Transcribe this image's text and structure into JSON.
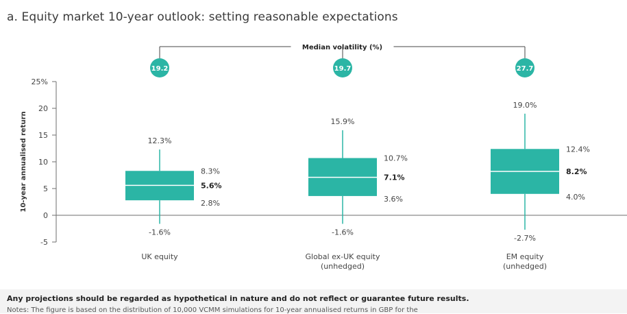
{
  "title": "a. Equity market 10-year outlook: setting reasonable expectations",
  "disclaimer": "Any projections should be regarded as hypothetical in nature and do not reflect or guarantee future results.",
  "note": "Notes: The figure is based on the distribution of 10,000 VCMM simulations for 10-year annualised returns in GBP for the",
  "colors": {
    "box": "#2bb5a5",
    "median_line": "#ffffff",
    "axis": "#6e6e6e",
    "badge": "#2bb5a5"
  },
  "chart_data": {
    "type": "box",
    "title": "",
    "ylabel": "10-year annualised return",
    "ylim": [
      -5,
      25
    ],
    "yticks": [
      {
        "value": 25,
        "label": "25%"
      },
      {
        "value": 20,
        "label": "20"
      },
      {
        "value": 15,
        "label": "15"
      },
      {
        "value": 10,
        "label": "10"
      },
      {
        "value": 5,
        "label": "5"
      },
      {
        "value": 0,
        "label": "0"
      },
      {
        "value": -5,
        "label": "-5"
      }
    ],
    "volatility_header": "Median volatility (%)",
    "categories": [
      {
        "label_lines": [
          "UK equity"
        ],
        "volatility": "19.2",
        "max": 12.3,
        "q3": 8.3,
        "median": 5.6,
        "q1": 2.8,
        "min": -1.6,
        "max_label": "12.3%",
        "q3_label": "8.3%",
        "median_label": "5.6%",
        "q1_label": "2.8%",
        "min_label": "-1.6%"
      },
      {
        "label_lines": [
          "Global ex-UK equity",
          "(unhedged)"
        ],
        "volatility": "19.7",
        "max": 15.9,
        "q3": 10.7,
        "median": 7.1,
        "q1": 3.6,
        "min": -1.6,
        "max_label": "15.9%",
        "q3_label": "10.7%",
        "median_label": "7.1%",
        "q1_label": "3.6%",
        "min_label": "-1.6%"
      },
      {
        "label_lines": [
          "EM equity",
          "(unhedged)"
        ],
        "volatility": "27.7",
        "max": 19.0,
        "q3": 12.4,
        "median": 8.2,
        "q1": 4.0,
        "min": -2.7,
        "max_label": "19.0%",
        "q3_label": "12.4%",
        "median_label": "8.2%",
        "q1_label": "4.0%",
        "min_label": "-2.7%"
      }
    ]
  }
}
